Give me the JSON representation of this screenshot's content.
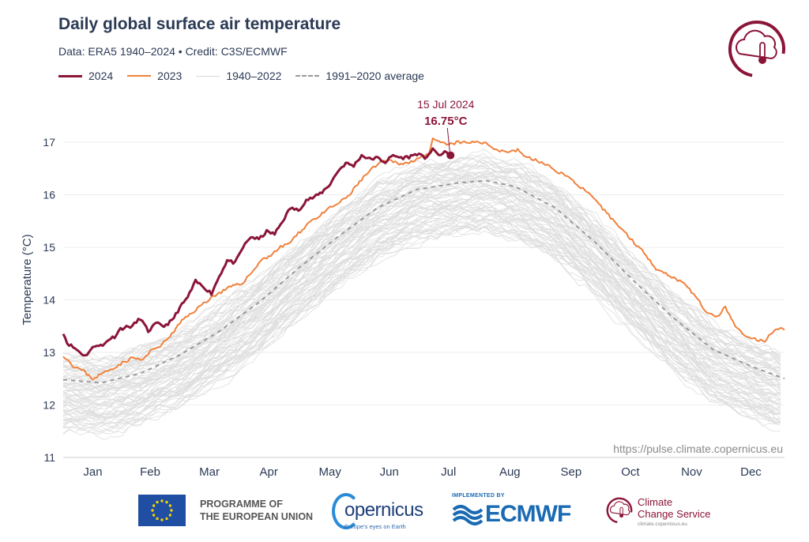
{
  "header": {
    "title": "Daily global surface air temperature",
    "subtitle": "Data: ERA5 1940–2024  •  Credit: C3S/ECMWF",
    "url": "https://pulse.climate.copernicus.eu"
  },
  "legend": {
    "y2024": "2024",
    "y2023": "2023",
    "hist": "1940–2022",
    "avg": "1991–2020 average"
  },
  "footer": {
    "eu_line1": "PROGRAMME OF",
    "eu_line2": "THE EUROPEAN UNION",
    "copernicus": "opernicus",
    "copernicus_tag": "Europe's eyes on Earth",
    "ecmwf_impl": "IMPLEMENTED BY",
    "ecmwf": "ECMWF",
    "ccs_line1": "Climate",
    "ccs_line2": "Change Service",
    "ccs_url": "climate.copernicus.eu"
  },
  "colors": {
    "y2024": "#8b1538",
    "y2023": "#f0813c",
    "hist": "#dedede",
    "avg": "#999999",
    "axis_text": "#2b3a55"
  },
  "chart_data": {
    "type": "line",
    "title": "Daily global surface air temperature",
    "ylabel": "Temperature (°C)",
    "xlabel": "",
    "ylim": [
      11,
      17.3
    ],
    "yticks": [
      11,
      12,
      13,
      14,
      15,
      16,
      17
    ],
    "xlim": [
      1,
      366
    ],
    "month_labels": [
      "Jan",
      "Feb",
      "Mar",
      "Apr",
      "May",
      "Jun",
      "Jul",
      "Aug",
      "Sep",
      "Oct",
      "Nov",
      "Dec"
    ],
    "month_centers": [
      16,
      45,
      75,
      105,
      136,
      166,
      196,
      227,
      258,
      288,
      319,
      349
    ],
    "annotation": {
      "date": "15 Jul 2024",
      "value_label": "16.75°C",
      "day": 197,
      "value": 16.75
    },
    "series": [
      {
        "name": "2024",
        "days": [
          1,
          3,
          6,
          9,
          12,
          15,
          18,
          21,
          24,
          27,
          30,
          33,
          36,
          40,
          44,
          48,
          52,
          56,
          60,
          64,
          68,
          72,
          76,
          80,
          84,
          88,
          92,
          96,
          100,
          104,
          108,
          112,
          116,
          120,
          124,
          128,
          132,
          136,
          140,
          144,
          148,
          152,
          156,
          160,
          164,
          168,
          172,
          176,
          180,
          184,
          188,
          192,
          195,
          197
        ],
        "values": [
          13.38,
          13.18,
          13.1,
          13.02,
          12.93,
          13.05,
          13.15,
          13.12,
          13.25,
          13.3,
          13.45,
          13.48,
          13.5,
          13.65,
          13.4,
          13.55,
          13.5,
          13.6,
          13.85,
          14.05,
          14.35,
          14.25,
          14.12,
          14.45,
          14.75,
          14.7,
          15.0,
          15.2,
          15.15,
          15.3,
          15.25,
          15.5,
          15.75,
          15.7,
          15.9,
          15.95,
          16.05,
          16.2,
          16.45,
          16.6,
          16.55,
          16.75,
          16.68,
          16.7,
          16.62,
          16.75,
          16.7,
          16.72,
          16.78,
          16.7,
          16.85,
          16.75,
          16.82,
          16.75
        ]
      },
      {
        "name": "2023",
        "days": [
          1,
          6,
          11,
          16,
          21,
          26,
          31,
          36,
          41,
          46,
          51,
          56,
          61,
          66,
          71,
          76,
          81,
          86,
          91,
          96,
          101,
          106,
          111,
          116,
          121,
          126,
          131,
          136,
          141,
          146,
          151,
          156,
          161,
          166,
          171,
          176,
          181,
          186,
          188,
          191,
          196,
          201,
          206,
          211,
          216,
          221,
          226,
          231,
          236,
          241,
          246,
          251,
          256,
          261,
          266,
          271,
          276,
          281,
          286,
          291,
          296,
          301,
          306,
          311,
          316,
          321,
          326,
          331,
          336,
          341,
          346,
          351,
          356,
          361,
          366
        ],
        "values": [
          12.95,
          12.75,
          12.65,
          12.5,
          12.6,
          12.7,
          12.8,
          12.9,
          12.85,
          13.05,
          13.15,
          13.35,
          13.6,
          13.75,
          13.9,
          14.05,
          14.15,
          14.25,
          14.3,
          14.5,
          14.75,
          14.85,
          15.0,
          15.1,
          15.3,
          15.5,
          15.6,
          15.75,
          15.85,
          16.0,
          16.25,
          16.45,
          16.6,
          16.65,
          16.6,
          16.6,
          16.72,
          16.75,
          17.05,
          17.0,
          16.95,
          17.0,
          16.98,
          17.02,
          16.95,
          16.85,
          16.82,
          16.85,
          16.7,
          16.65,
          16.55,
          16.45,
          16.35,
          16.2,
          16.05,
          15.85,
          15.65,
          15.45,
          15.25,
          15.05,
          14.85,
          14.6,
          14.5,
          14.4,
          14.3,
          14.05,
          13.8,
          13.65,
          13.85,
          13.5,
          13.3,
          13.25,
          13.2,
          13.45,
          13.45
        ]
      },
      {
        "name": "1991–2020 average",
        "days": [
          1,
          20,
          40,
          60,
          80,
          100,
          120,
          140,
          160,
          180,
          200,
          215,
          230,
          250,
          270,
          290,
          310,
          330,
          350,
          366
        ],
        "values": [
          12.48,
          12.42,
          12.6,
          12.95,
          13.4,
          13.95,
          14.6,
          15.2,
          15.75,
          16.1,
          16.22,
          16.27,
          16.15,
          15.75,
          15.1,
          14.35,
          13.65,
          13.05,
          12.72,
          12.5
        ]
      }
    ],
    "background_band": {
      "name": "1940–2022",
      "years": 83,
      "spread_below": 0.95,
      "spread_above": 0.45
    }
  }
}
